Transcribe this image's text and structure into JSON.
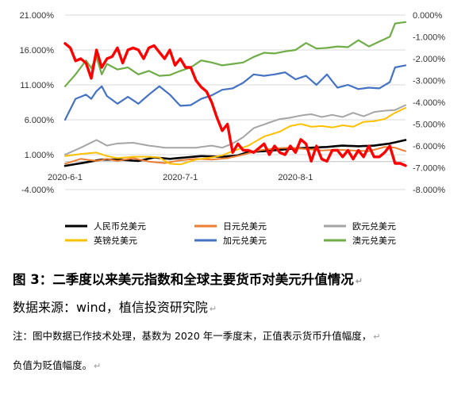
{
  "chart_data": {
    "type": "line",
    "left_axis": {
      "min": -4,
      "max": 21,
      "step": 5,
      "tick_labels": [
        "21.000%",
        "16.000%",
        "11.000%",
        "6.000%",
        "1.000%",
        "-4.000%"
      ]
    },
    "right_axis": {
      "min": -8,
      "max": 0,
      "step": 1,
      "tick_labels": [
        "0.000%",
        "-1.000%",
        "-2.000%",
        "-3.000%",
        "-4.000%",
        "-5.000%",
        "-6.000%",
        "-7.000%",
        "-8.000%"
      ]
    },
    "x_tick_labels": [
      {
        "label": "2020-6-1",
        "index": 0
      },
      {
        "label": "2020-7-1",
        "index": 22
      },
      {
        "label": "2020-8-1",
        "index": 44
      }
    ],
    "n_points": 66,
    "series": [
      {
        "name": "人民币兑美元",
        "color": "#000000",
        "width": 2.6,
        "axis": "left",
        "anchors": [
          [
            0,
            -0.6
          ],
          [
            4,
            -0.1
          ],
          [
            7,
            0.3
          ],
          [
            10,
            0.3
          ],
          [
            14,
            0.1
          ],
          [
            17,
            0.6
          ],
          [
            20,
            0.4
          ],
          [
            23,
            0.6
          ],
          [
            26,
            0.8
          ],
          [
            30,
            0.7
          ],
          [
            33,
            0.9
          ],
          [
            35,
            1.4
          ],
          [
            38,
            1.5
          ],
          [
            41,
            1.7
          ],
          [
            44,
            1.9
          ],
          [
            47,
            2.0
          ],
          [
            50,
            2.1
          ],
          [
            53,
            2.3
          ],
          [
            56,
            2.2
          ],
          [
            59,
            2.3
          ],
          [
            62,
            2.6
          ],
          [
            65,
            3.1
          ]
        ]
      },
      {
        "name": "日元兑美元",
        "color": "#ED7D31",
        "width": 2,
        "axis": "left",
        "anchors": [
          [
            0,
            -0.3
          ],
          [
            3,
            0.4
          ],
          [
            6,
            0.1
          ],
          [
            8,
            0.4
          ],
          [
            10,
            0.1
          ],
          [
            13,
            0.5
          ],
          [
            16,
            0.0
          ],
          [
            19,
            -0.2
          ],
          [
            22,
            0.2
          ],
          [
            25,
            0.4
          ],
          [
            28,
            0.3
          ],
          [
            31,
            0.5
          ],
          [
            34,
            1.0
          ],
          [
            37,
            1.6
          ],
          [
            40,
            1.9
          ],
          [
            43,
            2.0
          ],
          [
            46,
            1.8
          ],
          [
            49,
            1.6
          ],
          [
            52,
            1.7
          ],
          [
            55,
            1.6
          ],
          [
            58,
            1.5
          ],
          [
            61,
            2.1
          ],
          [
            63,
            2.0
          ],
          [
            65,
            1.5
          ]
        ]
      },
      {
        "name": "欧元兑美元",
        "color": "#A5A5A5",
        "width": 2,
        "axis": "left",
        "anchors": [
          [
            0,
            1.0
          ],
          [
            3,
            2.0
          ],
          [
            6,
            3.1
          ],
          [
            8,
            2.3
          ],
          [
            10,
            2.6
          ],
          [
            13,
            2.7
          ],
          [
            16,
            2.3
          ],
          [
            19,
            2.0
          ],
          [
            22,
            2.0
          ],
          [
            25,
            2.0
          ],
          [
            28,
            2.3
          ],
          [
            30,
            2.0
          ],
          [
            32,
            2.6
          ],
          [
            34,
            3.5
          ],
          [
            36,
            4.8
          ],
          [
            39,
            5.6
          ],
          [
            41,
            6.1
          ],
          [
            43,
            6.3
          ],
          [
            45,
            6.6
          ],
          [
            47,
            6.8
          ],
          [
            49,
            6.4
          ],
          [
            51,
            6.7
          ],
          [
            53,
            6.4
          ],
          [
            55,
            7.0
          ],
          [
            57,
            6.5
          ],
          [
            59,
            7.1
          ],
          [
            61,
            7.3
          ],
          [
            63,
            7.4
          ],
          [
            65,
            8.1
          ]
        ]
      },
      {
        "name": "英镑兑美元",
        "color": "#FFC000",
        "width": 2,
        "axis": "left",
        "anchors": [
          [
            0,
            0.8
          ],
          [
            3,
            1.1
          ],
          [
            6,
            1.3
          ],
          [
            8,
            0.8
          ],
          [
            10,
            0.5
          ],
          [
            13,
            0.7
          ],
          [
            16,
            0.7
          ],
          [
            18,
            0.6
          ],
          [
            20,
            -0.3
          ],
          [
            22,
            -0.4
          ],
          [
            25,
            0.3
          ],
          [
            28,
            0.6
          ],
          [
            30,
            0.9
          ],
          [
            32,
            1.5
          ],
          [
            35,
            2.3
          ],
          [
            38,
            3.6
          ],
          [
            41,
            4.3
          ],
          [
            43,
            5.1
          ],
          [
            45,
            5.4
          ],
          [
            47,
            5.0
          ],
          [
            49,
            5.1
          ],
          [
            51,
            4.9
          ],
          [
            53,
            5.2
          ],
          [
            55,
            5.0
          ],
          [
            57,
            5.7
          ],
          [
            59,
            5.8
          ],
          [
            61,
            6.1
          ],
          [
            63,
            7.0
          ],
          [
            65,
            7.7
          ]
        ]
      },
      {
        "name": "加元兑美元",
        "color": "#4472C4",
        "width": 2.2,
        "axis": "left",
        "anchors": [
          [
            0,
            6.0
          ],
          [
            2,
            9.0
          ],
          [
            4,
            9.6
          ],
          [
            5,
            9.0
          ],
          [
            6,
            10.1
          ],
          [
            7,
            10.8
          ],
          [
            8,
            9.4
          ],
          [
            10,
            8.3
          ],
          [
            12,
            9.3
          ],
          [
            14,
            8.3
          ],
          [
            16,
            9.6
          ],
          [
            18,
            10.8
          ],
          [
            20,
            9.6
          ],
          [
            22,
            8.0
          ],
          [
            24,
            8.1
          ],
          [
            26,
            9.0
          ],
          [
            28,
            9.5
          ],
          [
            30,
            10.3
          ],
          [
            32,
            10.5
          ],
          [
            34,
            11.3
          ],
          [
            36,
            12.5
          ],
          [
            38,
            12.3
          ],
          [
            40,
            12.5
          ],
          [
            42,
            12.8
          ],
          [
            44,
            11.8
          ],
          [
            46,
            12.3
          ],
          [
            48,
            11.0
          ],
          [
            50,
            12.5
          ],
          [
            52,
            10.6
          ],
          [
            54,
            11.0
          ],
          [
            56,
            10.4
          ],
          [
            58,
            10.6
          ],
          [
            60,
            10.5
          ],
          [
            62,
            11.4
          ],
          [
            63,
            13.5
          ],
          [
            65,
            13.8
          ]
        ]
      },
      {
        "name": "澳元兑美元",
        "color": "#70AD47",
        "width": 2.2,
        "axis": "left",
        "anchors": [
          [
            0,
            10.8
          ],
          [
            2,
            12.5
          ],
          [
            4,
            14.5
          ],
          [
            5,
            13.4
          ],
          [
            6,
            15.0
          ],
          [
            7,
            12.5
          ],
          [
            8,
            14.0
          ],
          [
            10,
            13.2
          ],
          [
            12,
            13.5
          ],
          [
            14,
            12.5
          ],
          [
            16,
            13.0
          ],
          [
            18,
            12.3
          ],
          [
            20,
            12.4
          ],
          [
            22,
            13.0
          ],
          [
            24,
            13.5
          ],
          [
            26,
            14.5
          ],
          [
            28,
            14.2
          ],
          [
            30,
            13.8
          ],
          [
            32,
            14.0
          ],
          [
            34,
            14.2
          ],
          [
            36,
            15.0
          ],
          [
            38,
            15.6
          ],
          [
            40,
            15.5
          ],
          [
            42,
            15.8
          ],
          [
            44,
            16.0
          ],
          [
            46,
            17.0
          ],
          [
            48,
            16.2
          ],
          [
            50,
            16.3
          ],
          [
            52,
            16.5
          ],
          [
            54,
            16.4
          ],
          [
            56,
            17.4
          ],
          [
            58,
            16.5
          ],
          [
            60,
            17.2
          ],
          [
            62,
            17.9
          ],
          [
            63,
            19.8
          ],
          [
            65,
            20.0
          ]
        ]
      },
      {
        "name": "美元指数",
        "color": "#FF0000",
        "width": 3.4,
        "axis": "right",
        "anchors": [
          [
            0,
            -1.3
          ],
          [
            1,
            -1.5
          ],
          [
            2,
            -2.1
          ],
          [
            3,
            -2.0
          ],
          [
            4,
            -2.2
          ],
          [
            5,
            -2.9
          ],
          [
            6,
            -1.6
          ],
          [
            7,
            -2.4
          ],
          [
            8,
            -2.0
          ],
          [
            9,
            -1.9
          ],
          [
            10,
            -1.5
          ],
          [
            11,
            -2.2
          ],
          [
            12,
            -1.6
          ],
          [
            13,
            -1.5
          ],
          [
            14,
            -1.6
          ],
          [
            15,
            -2.0
          ],
          [
            16,
            -1.5
          ],
          [
            17,
            -1.4
          ],
          [
            18,
            -1.7
          ],
          [
            19,
            -2.0
          ],
          [
            20,
            -1.6
          ],
          [
            21,
            -2.3
          ],
          [
            22,
            -2.0
          ],
          [
            23,
            -2.4
          ],
          [
            24,
            -2.4
          ],
          [
            25,
            -3.0
          ],
          [
            26,
            -3.3
          ],
          [
            27,
            -3.5
          ],
          [
            28,
            -4.0
          ],
          [
            29,
            -4.7
          ],
          [
            30,
            -5.3
          ],
          [
            31,
            -5.0
          ],
          [
            32,
            -6.3
          ],
          [
            33,
            -5.9
          ],
          [
            34,
            -6.2
          ],
          [
            35,
            -6.2
          ],
          [
            36,
            -6.3
          ],
          [
            37,
            -6.1
          ],
          [
            38,
            -5.9
          ],
          [
            39,
            -6.4
          ],
          [
            40,
            -6.0
          ],
          [
            41,
            -6.3
          ],
          [
            42,
            -6.4
          ],
          [
            43,
            -6.0
          ],
          [
            44,
            -6.3
          ],
          [
            45,
            -5.7
          ],
          [
            46,
            -5.9
          ],
          [
            47,
            -6.7
          ],
          [
            48,
            -6.0
          ],
          [
            49,
            -6.6
          ],
          [
            50,
            -6.7
          ],
          [
            51,
            -6.2
          ],
          [
            52,
            -6.2
          ],
          [
            53,
            -6.5
          ],
          [
            54,
            -6.2
          ],
          [
            55,
            -6.6
          ],
          [
            56,
            -6.2
          ],
          [
            57,
            -6.5
          ],
          [
            58,
            -6.0
          ],
          [
            59,
            -6.5
          ],
          [
            60,
            -6.5
          ],
          [
            61,
            -6.3
          ],
          [
            62,
            -6.0
          ],
          [
            63,
            -6.8
          ],
          [
            64,
            -6.8
          ],
          [
            65,
            -6.9
          ]
        ]
      }
    ]
  },
  "legend": [
    {
      "label": "人民币兑美元",
      "color": "#000000"
    },
    {
      "label": "日元兑美元",
      "color": "#ED7D31"
    },
    {
      "label": "欧元兑美元",
      "color": "#A5A5A5"
    },
    {
      "label": "英镑兑美元",
      "color": "#FFC000"
    },
    {
      "label": "加元兑美元",
      "color": "#4472C4"
    },
    {
      "label": "澳元兑美元",
      "color": "#70AD47"
    }
  ],
  "caption": {
    "title": "图 3：二季度以来美元指数和全球主要货币对美元升值情况",
    "source": "数据来源：wind，植信投资研究院",
    "note_1": "注：图中数据已作技术处理，基数为 2020 年一季度末，正值表示货币升值幅度，",
    "note_2": "负值为贬值幅度。",
    "para_mark": "↵"
  }
}
